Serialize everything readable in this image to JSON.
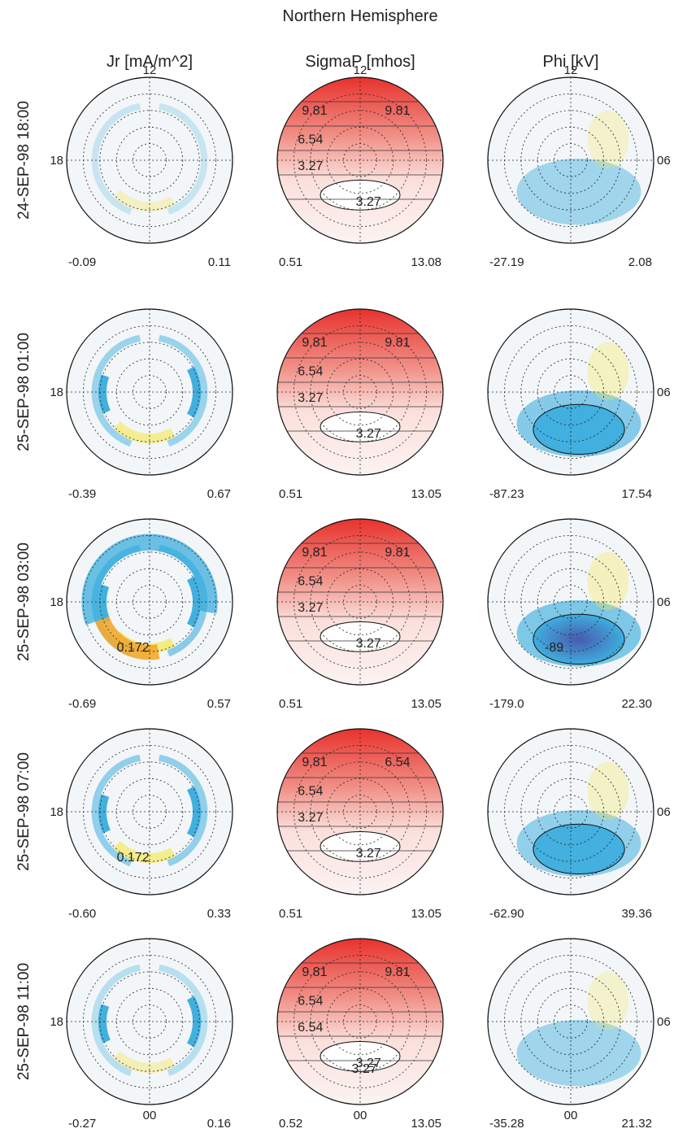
{
  "title": "Northern Hemisphere",
  "columns": [
    "Jr [mA/m^2]",
    "SigmaP [mhos]",
    "Phi [kV]"
  ],
  "dial_labels": {
    "noon": "12",
    "dusk": "18",
    "dawn": "06",
    "midnight": "00"
  },
  "colors": {
    "positive": "#f5e64b",
    "negative": "#2fa8dc",
    "strong_negative": "#3a3fa0",
    "conductance": "#e8322d",
    "background": "#f3f6f8"
  },
  "chart_data": [
    {
      "type": "heatmap",
      "panel": "Jr",
      "time": "24-SEP-98 18:00",
      "min": "-0.09",
      "max": "0.11",
      "contour_labels": []
    },
    {
      "type": "heatmap",
      "panel": "SigmaP",
      "time": "24-SEP-98 18:00",
      "min": "0.51",
      "max": "13.08",
      "contour_labels": [
        "9.81",
        "9.81",
        "6.54",
        "3.27",
        "3.27"
      ]
    },
    {
      "type": "heatmap",
      "panel": "Phi",
      "time": "24-SEP-98 18:00",
      "min": "-27.19",
      "max": "2.08",
      "contour_labels": []
    },
    {
      "type": "heatmap",
      "panel": "Jr",
      "time": "25-SEP-98 01:00",
      "min": "-0.39",
      "max": "0.67",
      "contour_labels": []
    },
    {
      "type": "heatmap",
      "panel": "SigmaP",
      "time": "25-SEP-98 01:00",
      "min": "0.51",
      "max": "13.05",
      "contour_labels": [
        "9.81",
        "9.81",
        "6.54",
        "3.27",
        "3.27"
      ]
    },
    {
      "type": "heatmap",
      "panel": "Phi",
      "time": "25-SEP-98 01:00",
      "min": "-87.23",
      "max": "17.54",
      "contour_labels": []
    },
    {
      "type": "heatmap",
      "panel": "Jr",
      "time": "25-SEP-98 03:00",
      "min": "-0.69",
      "max": "0.57",
      "contour_labels": [
        "0.172"
      ]
    },
    {
      "type": "heatmap",
      "panel": "SigmaP",
      "time": "25-SEP-98 03:00",
      "min": "0.51",
      "max": "13.05",
      "contour_labels": [
        "9.81",
        "9.81",
        "6.54",
        "3.27",
        "3.27"
      ]
    },
    {
      "type": "heatmap",
      "panel": "Phi",
      "time": "25-SEP-98 03:00",
      "min": "-179.0",
      "max": "22.30",
      "contour_labels": [
        "-89"
      ]
    },
    {
      "type": "heatmap",
      "panel": "Jr",
      "time": "25-SEP-98 07:00",
      "min": "-0.60",
      "max": "0.33",
      "contour_labels": [
        "0.172"
      ]
    },
    {
      "type": "heatmap",
      "panel": "SigmaP",
      "time": "25-SEP-98 07:00",
      "min": "0.51",
      "max": "13.05",
      "contour_labels": [
        "9.81",
        "6.54",
        "6.54",
        "3.27",
        "3.27"
      ]
    },
    {
      "type": "heatmap",
      "panel": "Phi",
      "time": "25-SEP-98 07:00",
      "min": "-62.90",
      "max": "39.36",
      "contour_labels": []
    },
    {
      "type": "heatmap",
      "panel": "Jr",
      "time": "25-SEP-98 11:00",
      "min": "-0.27",
      "max": "0.16",
      "contour_labels": []
    },
    {
      "type": "heatmap",
      "panel": "SigmaP",
      "time": "25-SEP-98 11:00",
      "min": "0.52",
      "max": "13.05",
      "contour_labels": [
        "9.81",
        "9.81",
        "6.54",
        "6.54",
        "3.27",
        "3.27"
      ]
    },
    {
      "type": "heatmap",
      "panel": "Phi",
      "time": "25-SEP-98 11:00",
      "min": "-35.28",
      "max": "21.32",
      "contour_labels": []
    }
  ]
}
